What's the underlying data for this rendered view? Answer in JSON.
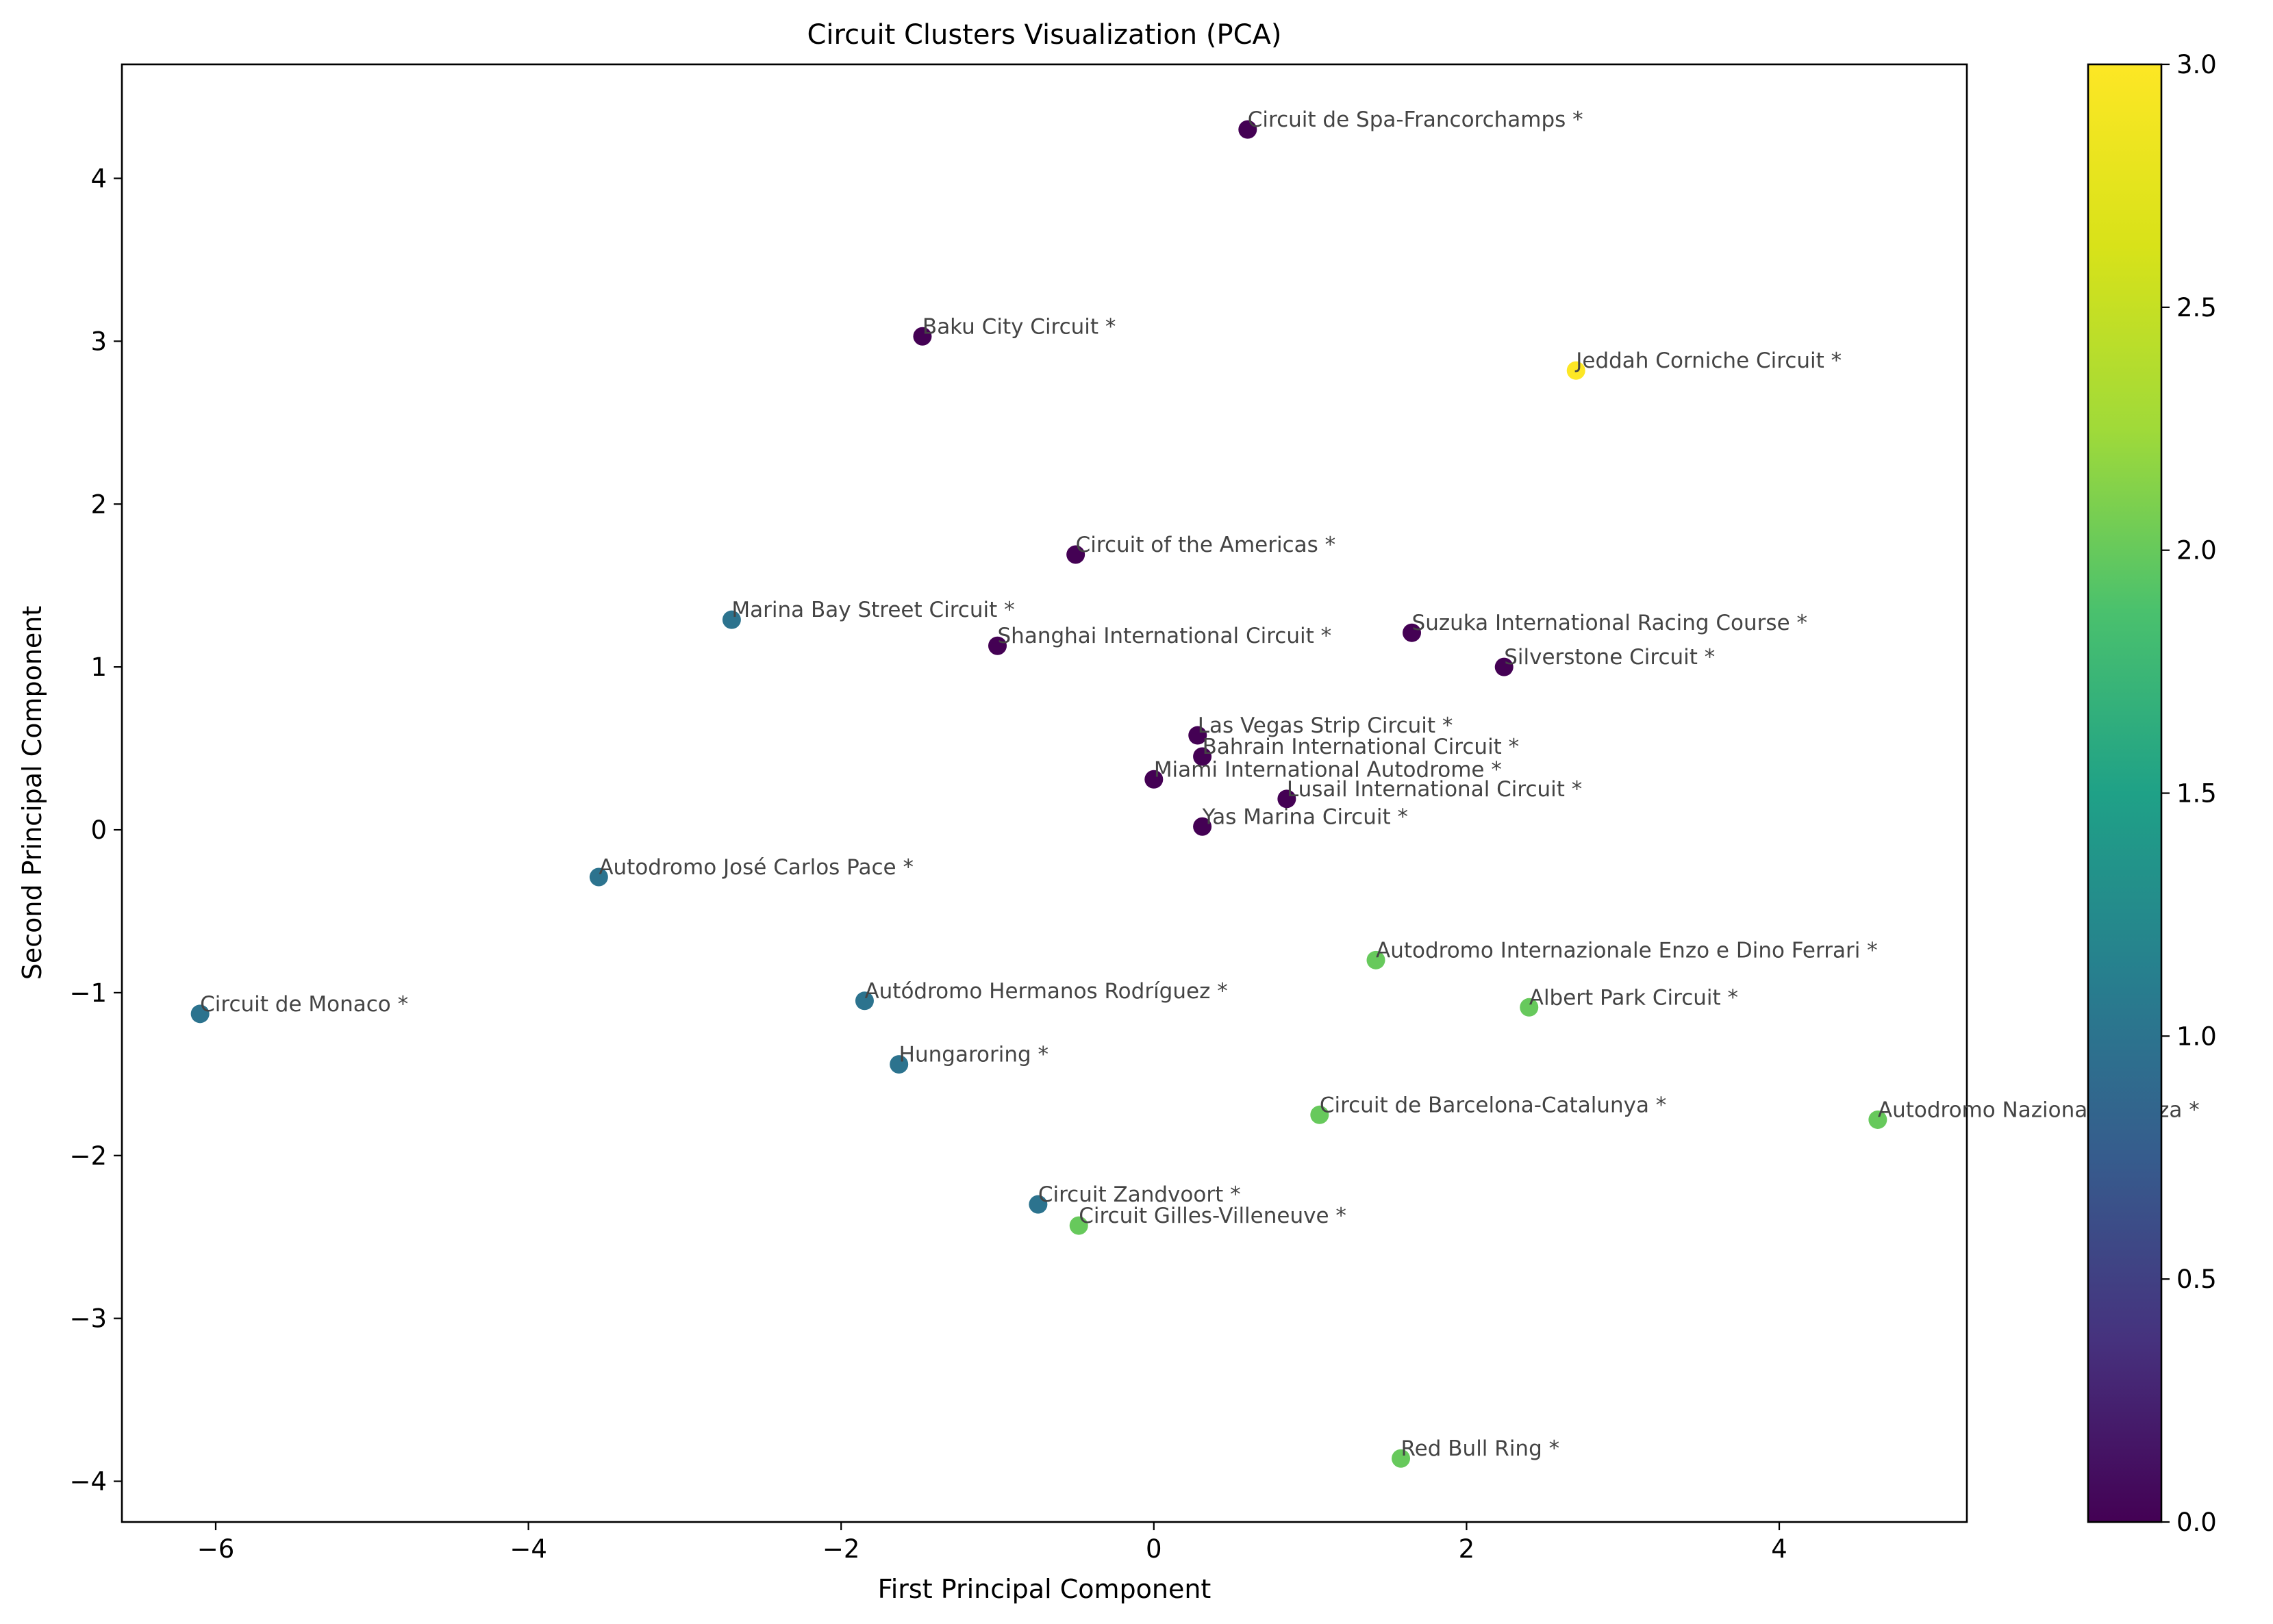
{
  "chart_data": {
    "type": "scatter",
    "title": "Circuit Clusters Visualization (PCA)",
    "xlabel": "First Principal Component",
    "ylabel": "Second Principal Component",
    "xlim": [
      -6.6,
      5.2
    ],
    "ylim": [
      -4.25,
      4.7
    ],
    "xticks": [
      -6,
      -4,
      -2,
      0,
      2,
      4
    ],
    "yticks": [
      -4,
      -3,
      -2,
      -1,
      0,
      1,
      2,
      3,
      4
    ],
    "xtick_labels": [
      "−6",
      "−4",
      "−2",
      "0",
      "2",
      "4"
    ],
    "ytick_labels": [
      "−4",
      "−3",
      "−2",
      "−1",
      "0",
      "1",
      "2",
      "3",
      "4"
    ],
    "grid": false,
    "colormap": "viridis",
    "colorbar": {
      "range": [
        0,
        3
      ],
      "ticks": [
        0.0,
        0.5,
        1.0,
        1.5,
        2.0,
        2.5,
        3.0
      ],
      "tick_labels": [
        "0.0",
        "0.5",
        "1.0",
        "1.5",
        "2.0",
        "2.5",
        "3.0"
      ]
    },
    "points": [
      {
        "label": "Circuit de Spa-Francorchamps *",
        "x": 0.6,
        "y": 4.3,
        "cluster": 0
      },
      {
        "label": "Baku City Circuit *",
        "x": -1.48,
        "y": 3.03,
        "cluster": 0
      },
      {
        "label": "Jeddah Corniche Circuit *",
        "x": 2.7,
        "y": 2.82,
        "cluster": 3
      },
      {
        "label": "Circuit of the Americas *",
        "x": -0.5,
        "y": 1.69,
        "cluster": 0
      },
      {
        "label": "Marina Bay Street Circuit *",
        "x": -2.7,
        "y": 1.29,
        "cluster": 1
      },
      {
        "label": "Shanghai International Circuit *",
        "x": -1.0,
        "y": 1.13,
        "cluster": 0
      },
      {
        "label": "Suzuka International Racing Course *",
        "x": 1.65,
        "y": 1.21,
        "cluster": 0
      },
      {
        "label": "Silverstone Circuit *",
        "x": 2.24,
        "y": 1.0,
        "cluster": 0
      },
      {
        "label": "Las Vegas Strip Circuit *",
        "x": 0.28,
        "y": 0.58,
        "cluster": 0
      },
      {
        "label": "Bahrain International Circuit *",
        "x": 0.31,
        "y": 0.45,
        "cluster": 0
      },
      {
        "label": "Miami International Autodrome *",
        "x": 0.0,
        "y": 0.31,
        "cluster": 0
      },
      {
        "label": "Lusail International Circuit *",
        "x": 0.85,
        "y": 0.19,
        "cluster": 0
      },
      {
        "label": "Yas Marina Circuit *",
        "x": 0.31,
        "y": 0.02,
        "cluster": 0
      },
      {
        "label": "Autodromo José Carlos Pace *",
        "x": -3.55,
        "y": -0.29,
        "cluster": 1
      },
      {
        "label": "Autodromo Internazionale Enzo e Dino Ferrari *",
        "x": 1.42,
        "y": -0.8,
        "cluster": 2
      },
      {
        "label": "Albert Park Circuit *",
        "x": 2.4,
        "y": -1.09,
        "cluster": 2
      },
      {
        "label": "Circuit de Monaco *",
        "x": -6.1,
        "y": -1.13,
        "cluster": 1
      },
      {
        "label": "Autódromo Hermanos Rodríguez *",
        "x": -1.85,
        "y": -1.05,
        "cluster": 1
      },
      {
        "label": "Hungaroring *",
        "x": -1.63,
        "y": -1.44,
        "cluster": 1
      },
      {
        "label": "Circuit de Barcelona-Catalunya *",
        "x": 1.06,
        "y": -1.75,
        "cluster": 2
      },
      {
        "label": "Autodromo Nazionale Monza *",
        "x": 4.63,
        "y": -1.78,
        "cluster": 2
      },
      {
        "label": "Circuit Zandvoort *",
        "x": -0.74,
        "y": -2.3,
        "cluster": 1
      },
      {
        "label": "Circuit Gilles-Villeneuve *",
        "x": -0.48,
        "y": -2.43,
        "cluster": 2
      },
      {
        "label": "Red Bull Ring *",
        "x": 1.58,
        "y": -3.86,
        "cluster": 2
      }
    ]
  }
}
